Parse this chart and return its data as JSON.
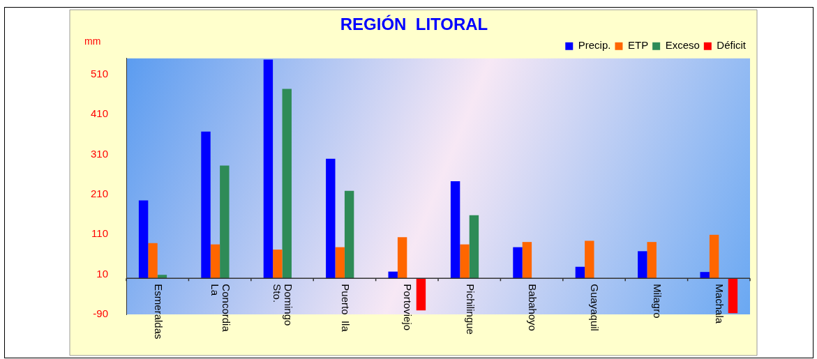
{
  "chart_data": {
    "type": "bar",
    "title": "REGIÓN  LITORAL",
    "ylabel": "mm",
    "categories": [
      "Esmeraldas",
      "La\nConcordia",
      "Sto.\nDomingo",
      "Puerto  Ila",
      "Portoviejo",
      "Pichilingue",
      "Babahoyo",
      "Guayaquil",
      "Milagro",
      "Machala"
    ],
    "series": [
      {
        "name": "Precip.",
        "color": "#0000ff",
        "values": [
          195,
          367,
          547,
          299,
          17,
          243,
          78,
          29,
          68,
          16
        ]
      },
      {
        "name": "ETP",
        "color": "#ff6600",
        "values": [
          88,
          85,
          72,
          78,
          103,
          85,
          91,
          94,
          91,
          109
        ]
      },
      {
        "name": "Exceso",
        "color": "#2e8b57",
        "values": [
          9,
          282,
          474,
          219,
          null,
          158,
          null,
          null,
          null,
          null
        ]
      },
      {
        "name": "Déficit",
        "color": "#ff0000",
        "values": [
          null,
          null,
          null,
          null,
          -80,
          null,
          null,
          null,
          null,
          -87
        ]
      }
    ],
    "ylim": [
      -90,
      550
    ],
    "yticks": [
      -90,
      10,
      110,
      210,
      310,
      410,
      510
    ],
    "grid": false,
    "legend": "top right"
  }
}
